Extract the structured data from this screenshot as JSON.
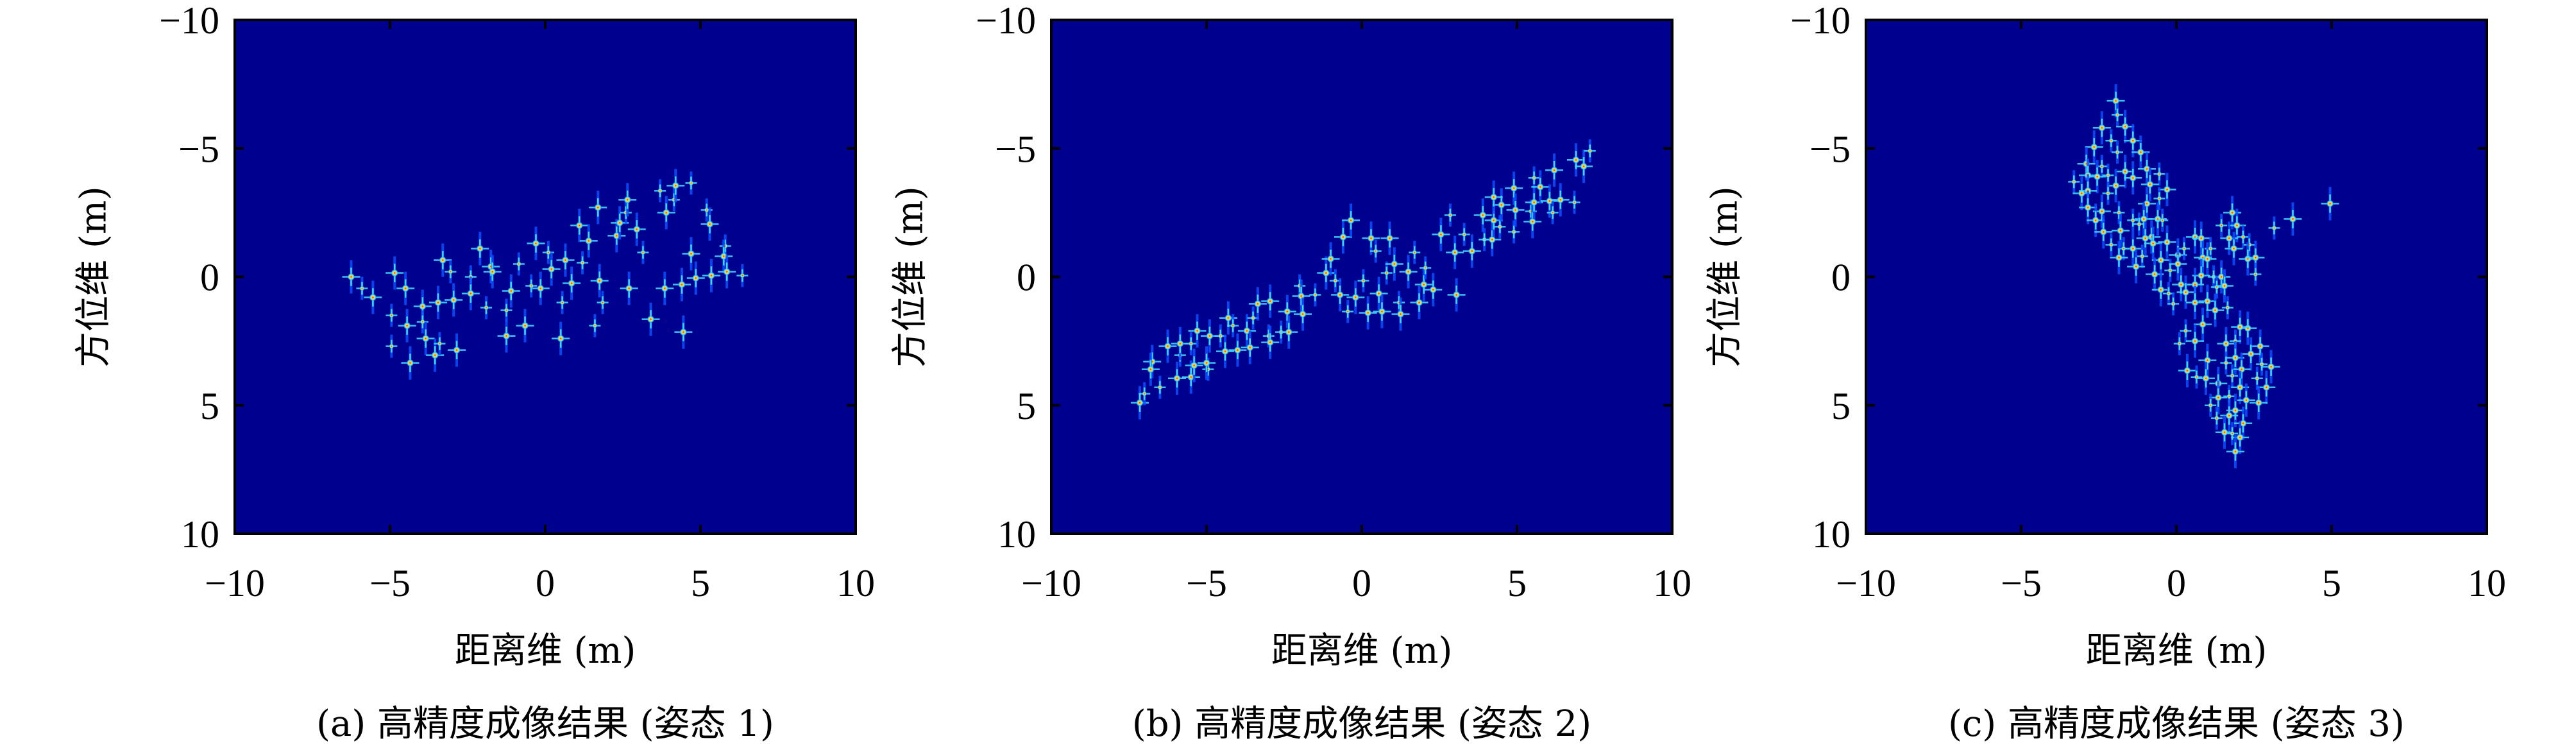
{
  "colors": {
    "background": "#00008f",
    "glint_outer": "#0a50ff",
    "glint_mid": "#3fd8ff",
    "glint_core": "#ffe23a",
    "glint_peak": "#e8200c",
    "axis": "#000000"
  },
  "chart_data": [
    {
      "type": "heatmap",
      "caption": "(a) 高精度成像结果 (姿态 1)",
      "xlabel": "距离维 (m)",
      "ylabel": "方位维 (m)",
      "xlim": [
        -10,
        10
      ],
      "ylim": [
        -10,
        10
      ],
      "y_axis_inverted": true,
      "xticks": [
        "−10",
        "−5",
        "0",
        "5",
        "10"
      ],
      "yticks": [
        "−10",
        "−5",
        "0",
        "5",
        "10"
      ],
      "grid": false,
      "colormap": "jet",
      "scatterers": [
        [
          -6.25,
          0
        ],
        [
          -5.9,
          0.45
        ],
        [
          -5.55,
          0.8
        ],
        [
          -4.85,
          -0.15
        ],
        [
          -4.95,
          1.5
        ],
        [
          -4.5,
          0.45
        ],
        [
          -4.45,
          1.9
        ],
        [
          -4.95,
          2.7
        ],
        [
          -4.35,
          3.35
        ],
        [
          -3.95,
          1.15
        ],
        [
          -3.95,
          1.75
        ],
        [
          -3.85,
          2.4
        ],
        [
          -3.55,
          3.05
        ],
        [
          -3.4,
          2.6
        ],
        [
          -3.3,
          -0.65
        ],
        [
          -3.45,
          1.0
        ],
        [
          -3.05,
          -0.2
        ],
        [
          -2.95,
          0.9
        ],
        [
          -2.85,
          2.85
        ],
        [
          -2.4,
          0
        ],
        [
          -2.4,
          0.65
        ],
        [
          -2.1,
          -1.1
        ],
        [
          -1.9,
          1.2
        ],
        [
          -1.75,
          -0.4
        ],
        [
          -1.7,
          -0.2
        ],
        [
          -1.25,
          1.3
        ],
        [
          -1.25,
          2.3
        ],
        [
          -1.1,
          0.55
        ],
        [
          -0.85,
          -0.5
        ],
        [
          -0.65,
          1.9
        ],
        [
          -0.3,
          -1.3
        ],
        [
          0.1,
          -0.95
        ],
        [
          -0.15,
          0.45
        ],
        [
          0.2,
          -0.3
        ],
        [
          0.55,
          1.0
        ],
        [
          0.65,
          -0.65
        ],
        [
          0.85,
          0.25
        ],
        [
          1.2,
          -0.55
        ],
        [
          1.1,
          -2.0
        ],
        [
          1.4,
          -1.4
        ],
        [
          1.6,
          1.9
        ],
        [
          1.7,
          -2.7
        ],
        [
          1.75,
          0.15
        ],
        [
          1.85,
          1.0
        ],
        [
          2.3,
          -1.6
        ],
        [
          2.4,
          -2.1
        ],
        [
          2.6,
          -2.5
        ],
        [
          2.65,
          -3.0
        ],
        [
          2.95,
          -1.85
        ],
        [
          3.15,
          -0.95
        ],
        [
          2.7,
          0.45
        ],
        [
          3.4,
          1.65
        ],
        [
          3.7,
          -3.35
        ],
        [
          3.85,
          0.45
        ],
        [
          3.9,
          -2.5
        ],
        [
          4.15,
          -3.0
        ],
        [
          4.2,
          -3.55
        ],
        [
          4.4,
          0.3
        ],
        [
          4.7,
          -3.65
        ],
        [
          4.7,
          -0.9
        ],
        [
          4.85,
          0.05
        ],
        [
          5.2,
          -2.6
        ],
        [
          5.3,
          -2.05
        ],
        [
          5.35,
          -0.05
        ],
        [
          5.8,
          -1.2
        ],
        [
          5.75,
          -0.8
        ],
        [
          5.85,
          -0.2
        ],
        [
          6.35,
          -0.05
        ],
        [
          4.45,
          2.15
        ],
        [
          0.5,
          2.4
        ],
        [
          -0.45,
          0.35
        ]
      ]
    },
    {
      "type": "heatmap",
      "caption": "(b) 高精度成像结果 (姿态 2)",
      "xlabel": "距离维 (m)",
      "ylabel": "方位维 (m)",
      "xlim": [
        -10,
        10
      ],
      "ylim": [
        -10,
        10
      ],
      "y_axis_inverted": true,
      "xticks": [
        "−10",
        "−5",
        "0",
        "5",
        "10"
      ],
      "yticks": [
        "−10",
        "−5",
        "0",
        "5",
        "10"
      ],
      "grid": false,
      "colormap": "jet",
      "scatterers": [
        [
          -7.15,
          4.9
        ],
        [
          -7.0,
          4.55
        ],
        [
          -6.75,
          3.3
        ],
        [
          -6.8,
          3.6
        ],
        [
          -6.5,
          4.3
        ],
        [
          -6.25,
          2.7
        ],
        [
          -5.95,
          3.95
        ],
        [
          -5.85,
          3.05
        ],
        [
          -5.85,
          2.6
        ],
        [
          -5.5,
          3.9
        ],
        [
          -5.5,
          2.6
        ],
        [
          -5.4,
          3.45
        ],
        [
          -5.3,
          2.1
        ],
        [
          -4.95,
          3.6
        ],
        [
          -5.0,
          3.35
        ],
        [
          -4.9,
          2.3
        ],
        [
          -4.55,
          2.3
        ],
        [
          -4.4,
          2.9
        ],
        [
          -4.3,
          1.6
        ],
        [
          -4.15,
          1.9
        ],
        [
          -4.0,
          2.85
        ],
        [
          -3.7,
          2.1
        ],
        [
          -3.5,
          1.6
        ],
        [
          -3.6,
          2.75
        ],
        [
          -3.35,
          1.05
        ],
        [
          -3.0,
          2.3
        ],
        [
          -2.95,
          2.55
        ],
        [
          -2.95,
          0.95
        ],
        [
          -2.6,
          2.15
        ],
        [
          -2.4,
          1.35
        ],
        [
          -2.35,
          2.15
        ],
        [
          -2.0,
          0.35
        ],
        [
          -1.95,
          0.75
        ],
        [
          -1.9,
          1.45
        ],
        [
          -1.5,
          0.7
        ],
        [
          -1.15,
          -0.15
        ],
        [
          -1.0,
          -0.7
        ],
        [
          -0.85,
          0.15
        ],
        [
          -0.7,
          0.7
        ],
        [
          -0.6,
          -1.55
        ],
        [
          -0.45,
          1.35
        ],
        [
          -0.35,
          -2.2
        ],
        [
          -0.2,
          0.8
        ],
        [
          0.05,
          0.15
        ],
        [
          0.2,
          1.4
        ],
        [
          0.3,
          -1.5
        ],
        [
          0.45,
          -1.0
        ],
        [
          0.55,
          0.65
        ],
        [
          0.65,
          1.35
        ],
        [
          0.8,
          -0.15
        ],
        [
          0.9,
          -1.5
        ],
        [
          1.05,
          -0.5
        ],
        [
          1.2,
          1.0
        ],
        [
          1.25,
          1.45
        ],
        [
          1.5,
          -0.2
        ],
        [
          1.7,
          -0.95
        ],
        [
          1.85,
          1.0
        ],
        [
          2.0,
          0.3
        ],
        [
          2.05,
          -0.35
        ],
        [
          2.3,
          0.5
        ],
        [
          2.55,
          -1.65
        ],
        [
          2.85,
          -2.4
        ],
        [
          3.0,
          -0.95
        ],
        [
          3.05,
          0.7
        ],
        [
          3.3,
          -1.65
        ],
        [
          3.55,
          -1.0
        ],
        [
          3.9,
          -2.4
        ],
        [
          3.95,
          -1.45
        ],
        [
          4.2,
          -1.45
        ],
        [
          4.25,
          -2.2
        ],
        [
          4.45,
          -1.95
        ],
        [
          4.5,
          -2.8
        ],
        [
          4.25,
          -3.1
        ],
        [
          4.9,
          -1.75
        ],
        [
          4.9,
          -3.45
        ],
        [
          4.95,
          -2.6
        ],
        [
          5.45,
          -2.55
        ],
        [
          5.5,
          -2.15
        ],
        [
          5.55,
          -2.9
        ],
        [
          5.55,
          -3.85
        ],
        [
          5.75,
          -3.5
        ],
        [
          6.05,
          -2.95
        ],
        [
          6.15,
          -2.5
        ],
        [
          6.2,
          -4.15
        ],
        [
          6.4,
          -3.0
        ],
        [
          6.85,
          -2.9
        ],
        [
          6.9,
          -4.55
        ],
        [
          7.15,
          -4.3
        ],
        [
          7.35,
          -4.9
        ]
      ]
    },
    {
      "type": "heatmap",
      "caption": "(c) 高精度成像结果 (姿态 3)",
      "xlabel": "距离维 (m)",
      "ylabel": "方位维 (m)",
      "xlim": [
        -10,
        10
      ],
      "ylim": [
        -10,
        10
      ],
      "y_axis_inverted": true,
      "xticks": [
        "−10",
        "−5",
        "0",
        "5",
        "10"
      ],
      "yticks": [
        "−10",
        "−5",
        "0",
        "5",
        "10"
      ],
      "grid": false,
      "colormap": "jet",
      "scatterers": [
        [
          -1.95,
          -6.85
        ],
        [
          -1.9,
          -6.3
        ],
        [
          -2.4,
          -5.8
        ],
        [
          -1.65,
          -5.85
        ],
        [
          -2.1,
          -5.3
        ],
        [
          -1.4,
          -5.3
        ],
        [
          -2.65,
          -5.05
        ],
        [
          -1.9,
          -4.85
        ],
        [
          -1.15,
          -4.85
        ],
        [
          -2.9,
          -4.4
        ],
        [
          -2.4,
          -4.3
        ],
        [
          -1.65,
          -4.1
        ],
        [
          -0.95,
          -4.2
        ],
        [
          -3.3,
          -3.7
        ],
        [
          -2.85,
          -3.95
        ],
        [
          -2.55,
          -3.9
        ],
        [
          -2.2,
          -3.95
        ],
        [
          -1.95,
          -3.55
        ],
        [
          -1.4,
          -3.85
        ],
        [
          -0.55,
          -4.0
        ],
        [
          -3.05,
          -3.25
        ],
        [
          -2.85,
          -3.35
        ],
        [
          -2.2,
          -3.25
        ],
        [
          -0.85,
          -3.6
        ],
        [
          -0.3,
          -3.4
        ],
        [
          -0.55,
          -3.05
        ],
        [
          -2.85,
          -2.7
        ],
        [
          -2.4,
          -2.55
        ],
        [
          -1.85,
          -2.5
        ],
        [
          -0.95,
          -2.85
        ],
        [
          -2.6,
          -2.2
        ],
        [
          -1.4,
          -2.2
        ],
        [
          -1.05,
          -2.25
        ],
        [
          -0.6,
          -2.25
        ],
        [
          -0.45,
          -2.2
        ],
        [
          -2.35,
          -1.75
        ],
        [
          -1.8,
          -1.8
        ],
        [
          -1.2,
          -2.05
        ],
        [
          -0.8,
          -1.55
        ],
        [
          -1.0,
          -1.5
        ],
        [
          -2.1,
          -1.25
        ],
        [
          -0.75,
          -1.3
        ],
        [
          -0.3,
          -1.35
        ],
        [
          -1.7,
          -1.1
        ],
        [
          -1.4,
          -1.1
        ],
        [
          -1.85,
          -0.75
        ],
        [
          -1.1,
          -0.8
        ],
        [
          -0.5,
          -0.65
        ],
        [
          0.05,
          -0.85
        ],
        [
          0.25,
          -1.1
        ],
        [
          0.6,
          -1.55
        ],
        [
          0.8,
          -1.5
        ],
        [
          1.1,
          -1.1
        ],
        [
          0.85,
          -0.75
        ],
        [
          1.0,
          -0.7
        ],
        [
          1.45,
          -2.0
        ],
        [
          1.8,
          -2.5
        ],
        [
          1.95,
          -2.0
        ],
        [
          2.15,
          -1.55
        ],
        [
          1.7,
          -1.5
        ],
        [
          1.85,
          -1.1
        ],
        [
          2.35,
          -1.25
        ],
        [
          2.3,
          -0.7
        ],
        [
          2.55,
          -0.75
        ],
        [
          2.55,
          -0.1
        ],
        [
          -1.3,
          -0.4
        ],
        [
          -0.7,
          -0.1
        ],
        [
          -0.2,
          -0.25
        ],
        [
          0.05,
          -0.5
        ],
        [
          0.8,
          -0.05
        ],
        [
          1.2,
          0.0
        ],
        [
          1.45,
          0.0
        ],
        [
          -0.5,
          0.5
        ],
        [
          -0.25,
          0.65
        ],
        [
          0.15,
          0.3
        ],
        [
          0.6,
          0.3
        ],
        [
          1.3,
          0.4
        ],
        [
          1.55,
          0.35
        ],
        [
          0.3,
          0.6
        ],
        [
          -0.1,
          1.05
        ],
        [
          0.6,
          1.0
        ],
        [
          1.0,
          0.95
        ],
        [
          1.65,
          1.2
        ],
        [
          1.25,
          1.3
        ],
        [
          0.85,
          1.85
        ],
        [
          0.3,
          2.1
        ],
        [
          2.3,
          2.0
        ],
        [
          2.05,
          1.95
        ],
        [
          0.1,
          2.6
        ],
        [
          0.6,
          2.5
        ],
        [
          1.6,
          2.6
        ],
        [
          1.9,
          2.5
        ],
        [
          2.7,
          2.7
        ],
        [
          1.0,
          3.25
        ],
        [
          1.6,
          3.35
        ],
        [
          1.9,
          3.15
        ],
        [
          2.4,
          3.0
        ],
        [
          2.75,
          3.4
        ],
        [
          3.05,
          3.5
        ],
        [
          0.35,
          3.65
        ],
        [
          0.65,
          3.9
        ],
        [
          0.95,
          3.95
        ],
        [
          2.1,
          3.6
        ],
        [
          1.8,
          3.85
        ],
        [
          1.35,
          4.15
        ],
        [
          2.05,
          4.3
        ],
        [
          2.6,
          3.95
        ],
        [
          2.9,
          4.3
        ],
        [
          1.35,
          4.7
        ],
        [
          1.7,
          4.65
        ],
        [
          2.25,
          4.8
        ],
        [
          2.65,
          4.9
        ],
        [
          1.1,
          5.0
        ],
        [
          1.9,
          5.2
        ],
        [
          1.7,
          5.4
        ],
        [
          1.3,
          5.5
        ],
        [
          2.15,
          5.7
        ],
        [
          1.55,
          6.05
        ],
        [
          1.8,
          6.1
        ],
        [
          2.05,
          6.25
        ],
        [
          1.9,
          6.8
        ],
        [
          3.15,
          -1.9
        ],
        [
          3.75,
          -2.25
        ],
        [
          4.95,
          -2.85
        ]
      ]
    }
  ]
}
